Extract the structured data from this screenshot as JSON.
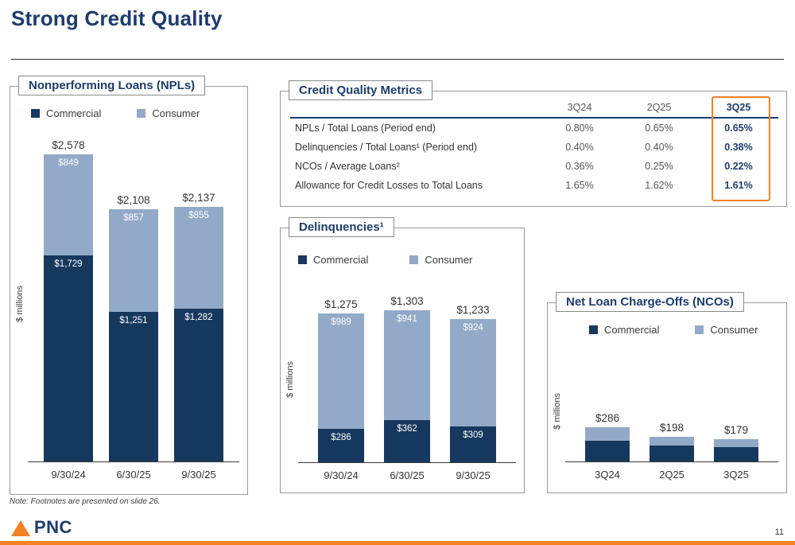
{
  "slide": {
    "title": "Strong Credit Quality",
    "note": "Note: Footnotes are presented on slide 26.",
    "page_number": "11",
    "brand_text": "PNC"
  },
  "colors": {
    "navy": "#1C3C6E",
    "commercial": "#16385E",
    "consumer": "#92A9C7",
    "highlight_orange": "#F58025"
  },
  "metrics_panel": {
    "title": "Credit Quality Metrics",
    "columns": [
      "3Q24",
      "2Q25",
      "3Q25"
    ],
    "highlight_column": "3Q25",
    "rows": [
      {
        "label": "NPLs / Total Loans (Period end)",
        "values": [
          "0.80%",
          "0.65%",
          "0.65%"
        ]
      },
      {
        "label": "Delinquencies / Total Loans¹ (Period end)",
        "values": [
          "0.40%",
          "0.40%",
          "0.38%"
        ]
      },
      {
        "label": "NCOs / Average Loans²",
        "values": [
          "0.36%",
          "0.25%",
          "0.22%"
        ]
      },
      {
        "label": "Allowance for Credit Losses to Total Loans",
        "values": [
          "1.65%",
          "1.62%",
          "1.61%"
        ]
      }
    ]
  },
  "chart_data": [
    {
      "id": "npl",
      "type": "bar",
      "stacked": true,
      "title": "Nonperforming Loans (NPLs)",
      "ylabel": "$ millions",
      "ylim": [
        0,
        2600
      ],
      "categories": [
        "9/30/24",
        "6/30/25",
        "9/30/25"
      ],
      "series": [
        {
          "name": "Commercial",
          "color": "#16385E",
          "values": [
            1729,
            1251,
            1282
          ],
          "labels": [
            "$1,729",
            "$1,251",
            "$1,282"
          ]
        },
        {
          "name": "Consumer",
          "color": "#92A9C7",
          "values": [
            849,
            857,
            855
          ],
          "labels": [
            "$849",
            "$857",
            "$855"
          ]
        }
      ],
      "totals": [
        2578,
        2108,
        2137
      ],
      "total_labels": [
        "$2,578",
        "$2,108",
        "$2,137"
      ]
    },
    {
      "id": "delinquencies",
      "type": "bar",
      "stacked": true,
      "title": "Delinquencies¹",
      "ylabel": "$ millions",
      "ylim": [
        0,
        1400
      ],
      "categories": [
        "9/30/24",
        "6/30/25",
        "9/30/25"
      ],
      "series": [
        {
          "name": "Commercial",
          "color": "#16385E",
          "values": [
            286,
            362,
            309
          ],
          "labels": [
            "$286",
            "$362",
            "$309"
          ]
        },
        {
          "name": "Consumer",
          "color": "#92A9C7",
          "values": [
            989,
            941,
            924
          ],
          "labels": [
            "$989",
            "$941",
            "$924"
          ]
        }
      ],
      "totals": [
        1275,
        1303,
        1233
      ],
      "total_labels": [
        "$1,275",
        "$1,303",
        "$1,233"
      ]
    },
    {
      "id": "nco",
      "type": "bar",
      "stacked": true,
      "title": "Net Loan Charge-Offs (NCOs)",
      "ylabel": "$ millions",
      "ylim": [
        0,
        850
      ],
      "categories": [
        "3Q24",
        "2Q25",
        "3Q25"
      ],
      "series": [
        {
          "name": "Commercial",
          "color": "#16385E",
          "values": [
            173,
            128,
            115
          ]
        },
        {
          "name": "Consumer",
          "color": "#92A9C7",
          "values": [
            113,
            70,
            64
          ]
        }
      ],
      "totals": [
        286,
        198,
        179
      ],
      "total_labels": [
        "$286",
        "$198",
        "$179"
      ]
    }
  ]
}
